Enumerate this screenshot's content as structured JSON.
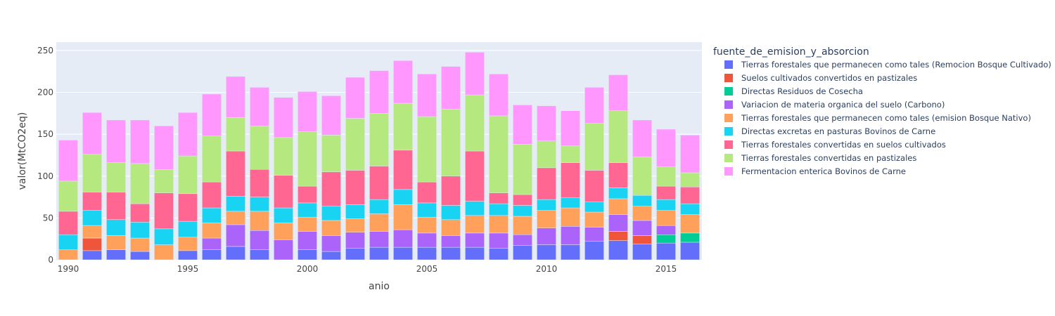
{
  "chart_data": {
    "type": "bar",
    "barmode": "stack",
    "title": "",
    "xlabel": "anio",
    "ylabel": "valor(MtCO2eq)",
    "legend_title": "fuente_de_emision_y_absorcion",
    "legend_position": "right",
    "grid": true,
    "xlim": [
      1989.5,
      2016.5
    ],
    "ylim": [
      0,
      260
    ],
    "x_ticks": [
      1990,
      1995,
      2000,
      2005,
      2010,
      2015
    ],
    "y_ticks": [
      0,
      50,
      100,
      150,
      200,
      250
    ],
    "x": [
      1990,
      1991,
      1992,
      1993,
      1994,
      1995,
      1996,
      1997,
      1998,
      1999,
      2000,
      2001,
      2002,
      2003,
      2004,
      2005,
      2006,
      2007,
      2008,
      2009,
      2010,
      2011,
      2012,
      2013,
      2014,
      2015,
      2016
    ],
    "series": [
      {
        "name": "Tierras forestales que permanecen como tales (Remocion Bosque Cultivado)",
        "color": "#636efa",
        "values": [
          0,
          11,
          12,
          10,
          0,
          11,
          12,
          16,
          12,
          0,
          12,
          10,
          14,
          15,
          15,
          15,
          15,
          15,
          14,
          17,
          18,
          18,
          22,
          23,
          19,
          20,
          21
        ]
      },
      {
        "name": "Suelos cultivados convertidos en pastizales",
        "color": "#ef553b",
        "values": [
          0,
          15,
          0,
          0,
          0,
          0,
          0,
          0,
          0,
          0,
          0,
          0,
          0,
          0,
          0,
          0,
          0,
          0,
          0,
          0,
          0,
          0,
          0,
          11,
          10,
          0,
          0
        ]
      },
      {
        "name": "Directas Residuos de Cosecha",
        "color": "#00cc96",
        "values": [
          0,
          0,
          0,
          0,
          0,
          0,
          0,
          0,
          0,
          0,
          0,
          0,
          0,
          0,
          0,
          0,
          0,
          0,
          0,
          0,
          0,
          0,
          0,
          0,
          0,
          10,
          11
        ]
      },
      {
        "name": "Variacion de materia organica del suelo (Carbono)",
        "color": "#ab63fa",
        "values": [
          0,
          0,
          0,
          0,
          0,
          0,
          14,
          26,
          23,
          24,
          22,
          19,
          19,
          19,
          21,
          17,
          14,
          17,
          18,
          13,
          20,
          22,
          17,
          20,
          18,
          11,
          0
        ]
      },
      {
        "name": "Tierras forestales que permanecen como tales (emision Bosque Nativo)",
        "color": "#ffa15a",
        "values": [
          12,
          15,
          17,
          16,
          18,
          16,
          18,
          16,
          23,
          20,
          17,
          18,
          16,
          21,
          30,
          19,
          19,
          21,
          21,
          22,
          21,
          22,
          18,
          19,
          17,
          18,
          22
        ]
      },
      {
        "name": "Directas excretas en pasturas Bovinos de Carne",
        "color": "#19d3f3",
        "values": [
          18,
          18,
          19,
          19,
          19,
          19,
          18,
          18,
          17,
          18,
          17,
          17,
          17,
          17,
          18,
          17,
          17,
          17,
          14,
          13,
          13,
          12,
          12,
          13,
          13,
          13,
          13
        ]
      },
      {
        "name": "Tierras forestales convertidas en suelos cultivados",
        "color": "#ff6692",
        "values": [
          28,
          22,
          33,
          22,
          43,
          33,
          31,
          54,
          33,
          39,
          20,
          41,
          41,
          40,
          47,
          25,
          35,
          60,
          13,
          13,
          38,
          42,
          38,
          30,
          0,
          16,
          20
        ]
      },
      {
        "name": "Tierras forestales convertidas en pastizales",
        "color": "#b6e880",
        "values": [
          36,
          45,
          35,
          48,
          28,
          45,
          55,
          40,
          52,
          45,
          65,
          44,
          62,
          63,
          56,
          78,
          80,
          67,
          92,
          60,
          32,
          20,
          56,
          62,
          46,
          23,
          17
        ]
      },
      {
        "name": "Fermentacion enterica Bovinos de Carne",
        "color": "#ff97ff",
        "values": [
          49,
          50,
          51,
          52,
          52,
          52,
          50,
          49,
          46,
          48,
          48,
          47,
          49,
          51,
          51,
          51,
          51,
          51,
          50,
          47,
          42,
          42,
          43,
          43,
          44,
          45,
          45
        ]
      }
    ]
  }
}
